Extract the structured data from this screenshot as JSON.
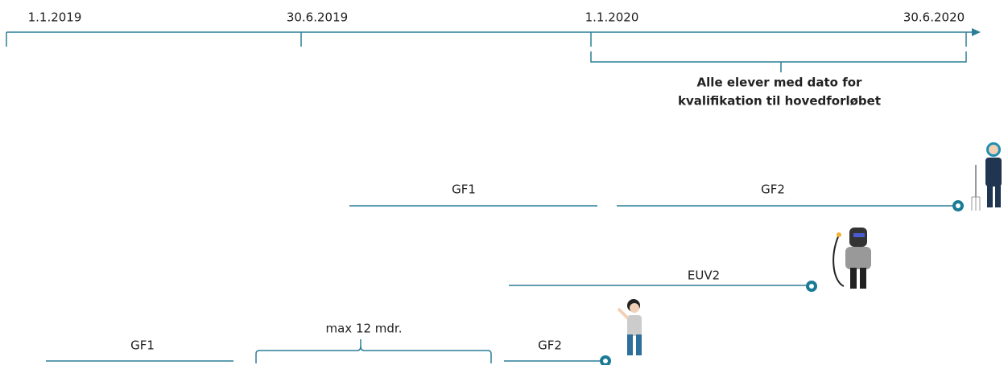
{
  "timeline": {
    "dates": [
      "1.1.2019",
      "30.6.2019",
      "1.1.2020",
      "30.6.2020"
    ],
    "bracket_label": [
      "Alle elever med dato for",
      "kvalifikation til hovedforløbet"
    ]
  },
  "rows": [
    {
      "segments": [
        "GF1",
        "GF2"
      ]
    },
    {
      "segments": [
        "EUV2"
      ]
    },
    {
      "segments": [
        "GF1",
        "max 12 mdr.",
        "GF2"
      ]
    }
  ]
}
